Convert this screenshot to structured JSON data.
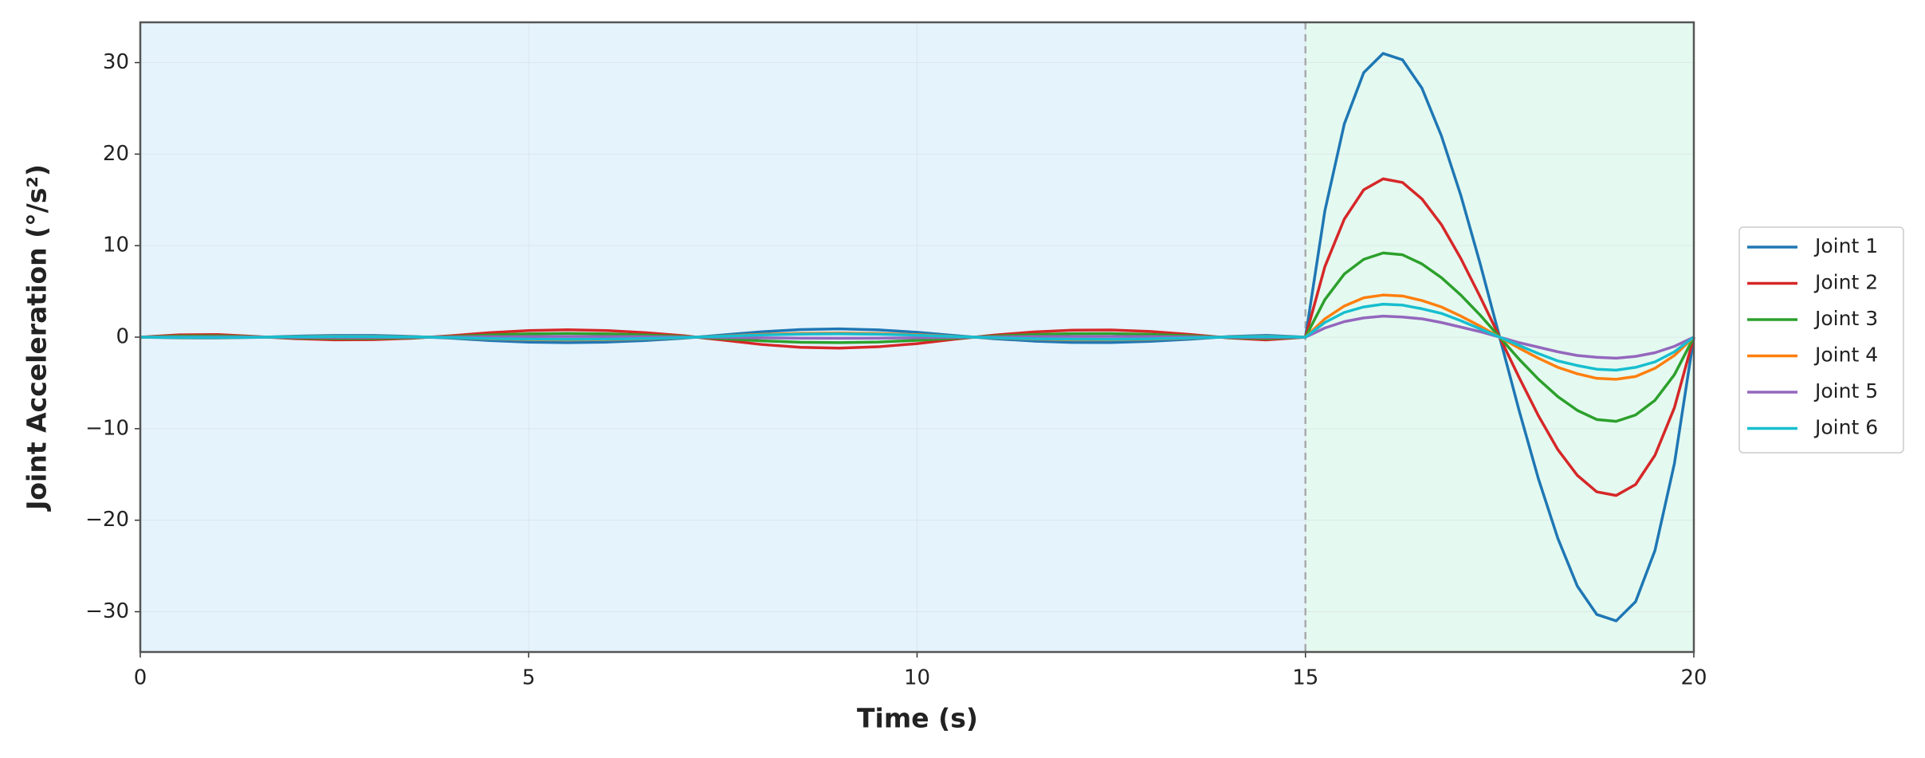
{
  "chart_data": {
    "type": "line",
    "xlabel": "Time (s)",
    "ylabel": "Joint Acceleration (°/s²)",
    "xlim": [
      0,
      20
    ],
    "ylim": [
      -34.4,
      34.4
    ],
    "xticks": [
      0,
      5,
      10,
      15,
      20
    ],
    "yticks": [
      -30,
      -20,
      -10,
      0,
      10,
      20,
      30
    ],
    "grid": true,
    "legend": "outside right",
    "regions": [
      {
        "xlim": [
          0,
          15
        ],
        "color": "#e4f3fc"
      },
      {
        "xlim": [
          15,
          20
        ],
        "color": "#e4faf0"
      }
    ],
    "vline": {
      "x": 15,
      "color": "#aaaaaa"
    },
    "x": [
      0,
      0.5,
      1,
      1.5,
      2,
      2.5,
      3,
      3.5,
      4,
      4.5,
      5,
      5.5,
      6,
      6.5,
      7,
      7.5,
      8,
      8.5,
      9,
      9.5,
      10,
      10.5,
      11,
      11.5,
      12,
      12.5,
      13,
      13.5,
      14,
      14.5,
      15,
      15.25,
      15.5,
      15.75,
      16,
      16.25,
      16.5,
      16.75,
      17,
      17.25,
      17.5,
      17.75,
      18,
      18.25,
      18.5,
      18.75,
      19,
      19.25,
      19.5,
      19.75,
      20
    ],
    "series": [
      {
        "name": "Joint 1",
        "color": "#1f77b4",
        "values": [
          0,
          -0.08,
          -0.09,
          -0.02,
          0.11,
          0.19,
          0.18,
          0.08,
          -0.11,
          -0.37,
          -0.54,
          -0.6,
          -0.54,
          -0.37,
          -0.11,
          0.24,
          0.59,
          0.83,
          0.9,
          0.79,
          0.53,
          0.16,
          -0.17,
          -0.43,
          -0.58,
          -0.59,
          -0.46,
          -0.23,
          0.06,
          0.2,
          0,
          13.8,
          23.3,
          28.9,
          31.0,
          30.3,
          27.2,
          22.0,
          15.5,
          8.0,
          0,
          -8.0,
          -15.5,
          -22.0,
          -27.2,
          -30.3,
          -31.0,
          -28.9,
          -23.3,
          -13.8,
          0
        ]
      },
      {
        "name": "Joint 2",
        "color": "#d62728",
        "values": [
          0,
          0.25,
          0.28,
          0.06,
          -0.16,
          -0.29,
          -0.27,
          -0.12,
          0.15,
          0.49,
          0.72,
          0.8,
          0.72,
          0.49,
          0.15,
          -0.32,
          -0.8,
          -1.11,
          -1.2,
          -1.05,
          -0.71,
          -0.21,
          0.23,
          0.57,
          0.76,
          0.78,
          0.62,
          0.31,
          -0.08,
          -0.3,
          0,
          7.7,
          12.9,
          16.1,
          17.3,
          16.9,
          15.1,
          12.3,
          8.6,
          4.4,
          0,
          -4.4,
          -8.6,
          -12.3,
          -15.1,
          -16.9,
          -17.3,
          -16.1,
          -12.9,
          -7.7,
          0
        ]
      },
      {
        "name": "Joint 3",
        "color": "#2ca02c",
        "values": [
          0,
          0.12,
          0.14,
          0.03,
          -0.08,
          -0.14,
          -0.14,
          -0.06,
          0.07,
          0.24,
          0.36,
          0.4,
          0.36,
          0.24,
          0.07,
          -0.16,
          -0.4,
          -0.55,
          -0.6,
          -0.53,
          -0.35,
          -0.11,
          0.12,
          0.28,
          0.38,
          0.39,
          0.31,
          0.15,
          -0.04,
          -0.15,
          0,
          4.1,
          6.9,
          8.5,
          9.2,
          9.0,
          8.0,
          6.5,
          4.6,
          2.4,
          0,
          -2.4,
          -4.6,
          -6.5,
          -8.0,
          -9.0,
          -9.2,
          -8.5,
          -6.9,
          -4.1,
          0
        ]
      },
      {
        "name": "Joint 4",
        "color": "#ff7f0e",
        "values": [
          0,
          -0.04,
          -0.05,
          -0.01,
          0.05,
          0.1,
          0.09,
          0.04,
          -0.05,
          -0.18,
          -0.27,
          -0.3,
          -0.27,
          -0.18,
          -0.05,
          0.12,
          0.3,
          0.41,
          0.45,
          0.4,
          0.27,
          0.08,
          -0.09,
          -0.21,
          -0.29,
          -0.29,
          -0.23,
          -0.11,
          0.03,
          0.1,
          0,
          2.0,
          3.4,
          4.3,
          4.6,
          4.5,
          4.0,
          3.3,
          2.3,
          1.2,
          0,
          -1.2,
          -2.3,
          -3.3,
          -4.0,
          -4.5,
          -4.6,
          -4.3,
          -3.4,
          -2.0,
          0
        ]
      },
      {
        "name": "Joint 5",
        "color": "#9467bd",
        "values": [
          0,
          0.02,
          0.03,
          0.01,
          -0.02,
          -0.03,
          -0.03,
          -0.01,
          0.01,
          0.05,
          0.07,
          0.08,
          0.07,
          0.05,
          0.01,
          -0.03,
          -0.08,
          -0.11,
          -0.12,
          -0.11,
          -0.07,
          -0.02,
          0.02,
          0.06,
          0.08,
          0.08,
          0.06,
          0.03,
          -0.01,
          -0.03,
          0,
          1.0,
          1.7,
          2.1,
          2.3,
          2.2,
          2.0,
          1.6,
          1.1,
          0.6,
          0,
          -0.6,
          -1.1,
          -1.6,
          -2.0,
          -2.2,
          -2.3,
          -2.1,
          -1.7,
          -1.0,
          0
        ]
      },
      {
        "name": "Joint 6",
        "color": "#17becf",
        "values": [
          0,
          -0.03,
          -0.04,
          -0.01,
          0.04,
          0.08,
          0.07,
          0.03,
          -0.04,
          -0.15,
          -0.22,
          -0.24,
          -0.22,
          -0.15,
          -0.04,
          0.1,
          0.24,
          0.33,
          0.36,
          0.32,
          0.21,
          0.06,
          -0.07,
          -0.17,
          -0.23,
          -0.24,
          -0.18,
          -0.09,
          0.02,
          0.08,
          0,
          1.6,
          2.7,
          3.3,
          3.6,
          3.5,
          3.1,
          2.6,
          1.8,
          0.9,
          0,
          -0.9,
          -1.8,
          -2.6,
          -3.1,
          -3.5,
          -3.6,
          -3.3,
          -2.7,
          -1.6,
          0
        ]
      }
    ]
  }
}
